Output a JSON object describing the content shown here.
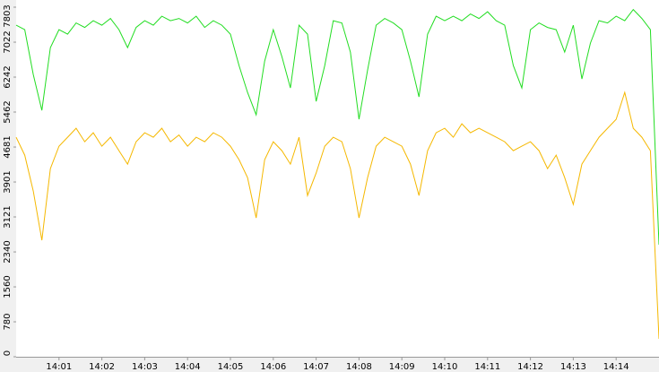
{
  "chart_data": {
    "type": "line",
    "x": [
      0,
      0.2,
      0.4,
      0.6,
      0.8,
      1,
      1.2,
      1.4,
      1.6,
      1.8,
      2,
      2.2,
      2.4,
      2.6,
      2.8,
      3,
      3.2,
      3.4,
      3.6,
      3.8,
      4,
      4.2,
      4.4,
      4.6,
      4.8,
      5,
      5.2,
      5.4,
      5.6,
      5.8,
      6,
      6.2,
      6.4,
      6.6,
      6.8,
      7,
      7.2,
      7.4,
      7.6,
      7.8,
      8,
      8.2,
      8.4,
      8.6,
      8.8,
      9,
      9.2,
      9.4,
      9.6,
      9.8,
      10,
      10.2,
      10.4,
      10.6,
      10.8,
      11,
      11.2,
      11.4,
      11.6,
      11.8,
      12,
      12.2,
      12.4,
      12.6,
      12.8,
      13,
      13.2,
      13.4,
      13.6,
      13.8,
      14,
      14.2,
      14.4,
      14.6,
      14.8,
      15
    ],
    "series": [
      {
        "color": "#22dd22",
        "values": [
          7400,
          7300,
          6300,
          5500,
          6900,
          7300,
          7200,
          7450,
          7350,
          7500,
          7400,
          7550,
          7300,
          6900,
          7350,
          7500,
          7400,
          7600,
          7500,
          7550,
          7450,
          7600,
          7350,
          7500,
          7400,
          7200,
          6500,
          5900,
          5400,
          6600,
          7300,
          6700,
          6000,
          7400,
          7200,
          5700,
          6500,
          7500,
          7450,
          6800,
          5300,
          6400,
          7400,
          7550,
          7450,
          7300,
          6600,
          5800,
          7200,
          7600,
          7500,
          7600,
          7500,
          7650,
          7550,
          7700,
          7500,
          7400,
          6500,
          6000,
          7300,
          7450,
          7350,
          7300,
          6800,
          7400,
          6200,
          7000,
          7500,
          7450,
          7600,
          7500,
          7750,
          7550,
          7300,
          2500
        ]
      },
      {
        "color": "#f5b800",
        "values": [
          4900,
          4500,
          3700,
          2600,
          4200,
          4700,
          4900,
          5100,
          4800,
          5000,
          4700,
          4900,
          4600,
          4300,
          4800,
          5000,
          4900,
          5100,
          4800,
          4950,
          4700,
          4900,
          4800,
          5000,
          4900,
          4700,
          4400,
          4000,
          3100,
          4400,
          4800,
          4600,
          4300,
          4900,
          3600,
          4100,
          4700,
          4900,
          4800,
          4200,
          3100,
          4000,
          4700,
          4900,
          4800,
          4700,
          4300,
          3600,
          4600,
          5000,
          5100,
          4900,
          5200,
          5000,
          5100,
          5000,
          4900,
          4800,
          4600,
          4700,
          4800,
          4600,
          4200,
          4500,
          4000,
          3400,
          4300,
          4600,
          4900,
          5100,
          5300,
          5900,
          5100,
          4900,
          4600,
          400
        ]
      }
    ],
    "xlim": [
      0,
      15
    ],
    "xticks": [
      {
        "value": 1,
        "label": "14:01"
      },
      {
        "value": 2,
        "label": "14:02"
      },
      {
        "value": 3,
        "label": "14:03"
      },
      {
        "value": 4,
        "label": "14:04"
      },
      {
        "value": 5,
        "label": "14:05"
      },
      {
        "value": 6,
        "label": "14:06"
      },
      {
        "value": 7,
        "label": "14:07"
      },
      {
        "value": 8,
        "label": "14:08"
      },
      {
        "value": 9,
        "label": "14:09"
      },
      {
        "value": 10,
        "label": "14:10"
      },
      {
        "value": 11,
        "label": "14:11"
      },
      {
        "value": 12,
        "label": "14:12"
      },
      {
        "value": 13,
        "label": "14:13"
      },
      {
        "value": 14,
        "label": "14:14"
      }
    ],
    "ylim": [
      0,
      7803
    ],
    "yticks": [
      0,
      780,
      1560,
      2340,
      3121,
      3901,
      4681,
      5462,
      6242,
      7022,
      7803
    ]
  }
}
